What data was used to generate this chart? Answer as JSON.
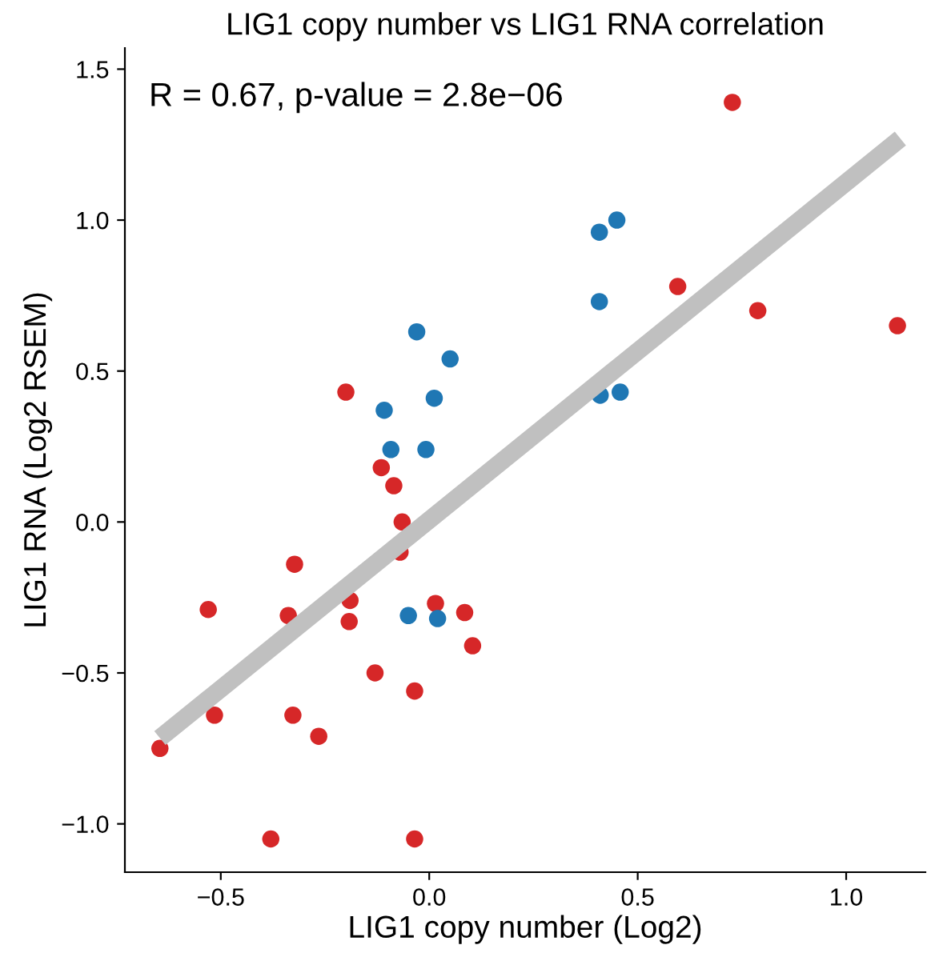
{
  "chart_data": {
    "type": "scatter",
    "title": "LIG1 copy number vs LIG1 RNA correlation",
    "xlabel": "LIG1 copy number (Log2)",
    "ylabel": "LIG1 RNA (Log2 RSEM)",
    "annotations": [
      "R = 0.67, p-value = 2.8e−06"
    ],
    "xlim": [
      -0.73,
      1.19
    ],
    "ylim": [
      -1.16,
      1.57
    ],
    "xticks": [
      {
        "value": -0.5,
        "label": "−0.5"
      },
      {
        "value": 0.0,
        "label": "0.0"
      },
      {
        "value": 0.5,
        "label": "0.5"
      },
      {
        "value": 1.0,
        "label": "1.0"
      }
    ],
    "yticks": [
      {
        "value": -1.0,
        "label": "−1.0"
      },
      {
        "value": -0.5,
        "label": "−0.5"
      },
      {
        "value": 0.0,
        "label": "0.0"
      },
      {
        "value": 0.5,
        "label": "0.5"
      },
      {
        "value": 1.0,
        "label": "1.0"
      },
      {
        "value": 1.5,
        "label": "1.5"
      }
    ],
    "grid": false,
    "legend": false,
    "marker": "circle",
    "series": [
      {
        "type": "line",
        "marker": "none",
        "color": "#c0c0c0",
        "x": [
          -0.646,
          1.13
        ],
        "values": [
          -0.716,
          1.27
        ]
      },
      {
        "color": "#d62728",
        "x": [
          0.727,
          0.596,
          0.788,
          1.123,
          -0.2,
          -0.115,
          -0.085,
          -0.065,
          -0.07,
          -0.323,
          -0.53,
          -0.338,
          -0.19,
          -0.192,
          0.015,
          0.085,
          0.104,
          -0.13,
          -0.035,
          -0.515,
          -0.327,
          -0.265,
          -0.646,
          -0.38,
          -0.035
        ],
        "values": [
          1.39,
          0.78,
          0.7,
          0.65,
          0.43,
          0.18,
          0.12,
          0.0,
          -0.1,
          -0.14,
          -0.29,
          -0.31,
          -0.26,
          -0.33,
          -0.27,
          -0.3,
          -0.41,
          -0.5,
          -0.56,
          -0.64,
          -0.64,
          -0.71,
          -0.75,
          -1.05,
          -1.05
        ]
      },
      {
        "color": "#1f77b4",
        "x": [
          0.45,
          0.408,
          0.408,
          0.41,
          0.458,
          -0.03,
          0.05,
          0.012,
          -0.108,
          -0.092,
          -0.008,
          -0.05,
          0.02
        ],
        "values": [
          1.0,
          0.96,
          0.73,
          0.42,
          0.43,
          0.63,
          0.54,
          0.41,
          0.37,
          0.24,
          0.24,
          -0.31,
          -0.32
        ]
      }
    ]
  }
}
